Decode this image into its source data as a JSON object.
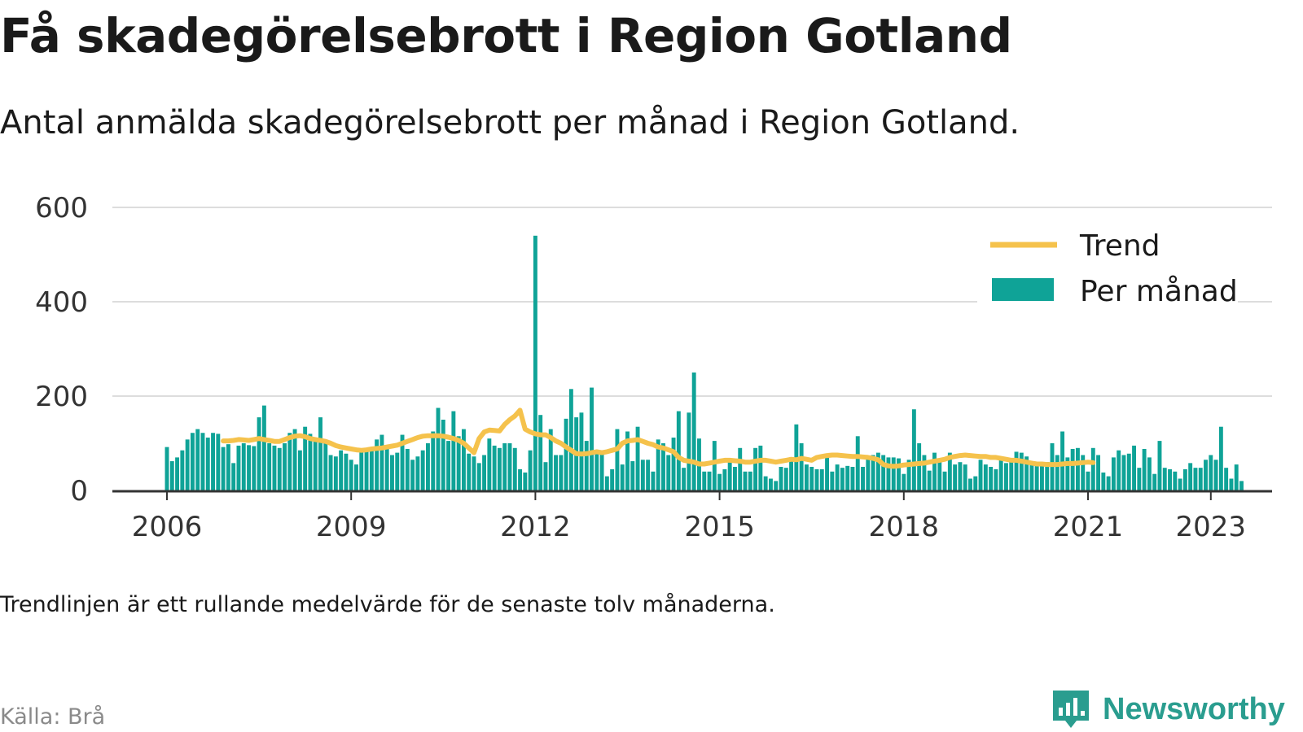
{
  "header": {
    "title": "Få skadegörelsebrott i Region Gotland",
    "subtitle": "Antal anmälda skadegörelsebrott per månad i Region Gotland."
  },
  "footer": {
    "note": "Trendlinjen är ett rullande medelvärde för de senaste tolv månaderna.",
    "source": "Källa: Brå",
    "brand": "Newsworthy"
  },
  "colors": {
    "bars": "#0fa397",
    "trend": "#f5c24c",
    "grid": "#dddddd",
    "axis": "#333333",
    "brand": "#2a9d8f"
  },
  "chart_data": {
    "type": "bar",
    "x_start": "2006-01",
    "x_ticks": [
      "2006",
      "2009",
      "2012",
      "2015",
      "2018",
      "2021",
      "2023"
    ],
    "ylim": [
      0,
      600
    ],
    "y_ticks": [
      "0",
      "200",
      "400",
      "600"
    ],
    "grid": true,
    "legend_position": "top-right",
    "series": [
      {
        "name": "Per månad",
        "kind": "bar",
        "values": [
          92,
          62,
          70,
          85,
          108,
          122,
          130,
          122,
          112,
          122,
          120,
          92,
          98,
          58,
          95,
          100,
          96,
          94,
          155,
          180,
          100,
          95,
          90,
          100,
          122,
          130,
          85,
          135,
          120,
          108,
          155,
          100,
          75,
          72,
          85,
          78,
          65,
          55,
          85,
          85,
          88,
          108,
          118,
          88,
          75,
          80,
          118,
          88,
          65,
          72,
          85,
          100,
          125,
          175,
          150,
          105,
          168,
          115,
          130,
          78,
          72,
          58,
          75,
          110,
          95,
          90,
          100,
          100,
          90,
          45,
          38,
          85,
          540,
          160,
          60,
          130,
          75,
          75,
          152,
          215,
          155,
          165,
          105,
          218,
          85,
          85,
          30,
          45,
          130,
          55,
          125,
          62,
          135,
          65,
          65,
          40,
          108,
          100,
          75,
          112,
          168,
          48,
          165,
          250,
          110,
          40,
          40,
          105,
          35,
          45,
          60,
          50,
          90,
          40,
          40,
          90,
          95,
          30,
          25,
          20,
          50,
          48,
          70,
          140,
          100,
          55,
          50,
          45,
          45,
          70,
          40,
          55,
          48,
          52,
          50,
          115,
          50,
          70,
          75,
          80,
          75,
          70,
          70,
          68,
          35,
          65,
          172,
          100,
          75,
          42,
          80,
          65,
          40,
          80,
          55,
          60,
          55,
          25,
          30,
          65,
          55,
          50,
          45,
          70,
          58,
          62,
          82,
          80,
          72,
          60,
          55,
          55,
          60,
          100,
          75,
          125,
          70,
          88,
          90,
          75,
          40,
          90,
          75,
          38,
          30,
          70,
          85,
          75,
          78,
          95,
          48,
          88,
          70,
          35,
          105,
          48,
          45,
          40,
          25,
          45,
          58,
          48,
          48,
          65,
          75,
          65,
          135,
          48,
          25,
          55,
          20
        ]
      },
      {
        "name": "Trend",
        "kind": "line",
        "start_index": 11,
        "values": [
          105,
          105,
          106,
          108,
          107,
          106,
          108,
          110,
          108,
          106,
          104,
          104,
          108,
          112,
          115,
          116,
          114,
          110,
          108,
          106,
          104,
          100,
          95,
          92,
          90,
          88,
          86,
          85,
          86,
          88,
          89,
          90,
          92,
          94,
          96,
          100,
          104,
          108,
          112,
          115,
          116,
          116,
          116,
          115,
          113,
          110,
          106,
          100,
          90,
          80,
          110,
          124,
          128,
          127,
          126,
          140,
          150,
          158,
          170,
          130,
          124,
          120,
          118,
          118,
          112,
          105,
          100,
          92,
          85,
          78,
          77,
          78,
          80,
          82,
          80,
          82,
          85,
          88,
          100,
          105,
          106,
          108,
          104,
          100,
          97,
          92,
          90,
          86,
          82,
          70,
          64,
          62,
          60,
          56,
          56,
          58,
          60,
          62,
          64,
          64,
          63,
          62,
          60,
          60,
          62,
          64,
          64,
          62,
          60,
          62,
          64,
          66,
          65,
          68,
          66,
          64,
          70,
          72,
          74,
          75,
          75,
          74,
          73,
          72,
          72,
          71,
          70,
          68,
          65,
          55,
          52,
          51,
          52,
          54,
          55,
          56,
          57,
          58,
          60,
          62,
          64,
          66,
          70,
          72,
          74,
          75,
          74,
          73,
          72,
          72,
          70,
          70,
          68,
          66,
          64,
          64,
          62,
          60,
          58,
          56,
          56,
          55,
          55,
          55,
          56,
          57,
          57,
          58,
          59,
          60,
          59
        ]
      }
    ]
  }
}
